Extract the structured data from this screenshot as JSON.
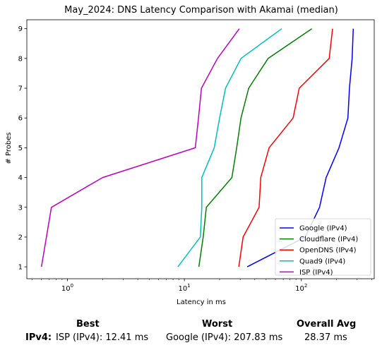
{
  "chart_data": {
    "type": "line",
    "title": "May_2024: DNS Latency Comparison with Akamai (median)",
    "xlabel": "Latency in ms",
    "ylabel": "# Probes",
    "xscale": "log",
    "xlim": [
      0.45,
      420
    ],
    "ylim": [
      0.6,
      9.3
    ],
    "xticks": [
      {
        "value": 1,
        "base": "10",
        "exp": "0"
      },
      {
        "value": 10,
        "base": "10",
        "exp": "1"
      },
      {
        "value": 100,
        "base": "10",
        "exp": "2"
      }
    ],
    "yticks": [
      1,
      2,
      3,
      4,
      5,
      6,
      7,
      8,
      9
    ],
    "legend_position": "lower-right",
    "series": [
      {
        "name": "Google (IPv4)",
        "color": "#0000ff",
        "points": [
          [
            34.5,
            1
          ],
          [
            108,
            2
          ],
          [
            143,
            3
          ],
          [
            163,
            4
          ],
          [
            210,
            5
          ],
          [
            250,
            6
          ],
          [
            258,
            7
          ],
          [
            272,
            8
          ],
          [
            278,
            9
          ]
        ]
      },
      {
        "name": "Cloudflare (IPv4)",
        "color": "#008000",
        "points": [
          [
            13.3,
            1
          ],
          [
            14.5,
            2
          ],
          [
            15.4,
            3
          ],
          [
            25.5,
            4
          ],
          [
            28.0,
            5
          ],
          [
            30.5,
            6
          ],
          [
            35.5,
            7
          ],
          [
            52.0,
            8
          ],
          [
            123,
            9
          ]
        ]
      },
      {
        "name": "OpenDNS (IPv4)",
        "color": "#ff0000",
        "points": [
          [
            29.2,
            1
          ],
          [
            31.8,
            2
          ],
          [
            43.5,
            3
          ],
          [
            45.0,
            4
          ],
          [
            53.0,
            5
          ],
          [
            85.0,
            6
          ],
          [
            96.0,
            7
          ],
          [
            173,
            8
          ],
          [
            185,
            9
          ]
        ]
      },
      {
        "name": "Quad9 (IPv4)",
        "color": "#00bfbf",
        "points": [
          [
            8.8,
            1
          ],
          [
            13.7,
            2
          ],
          [
            14.1,
            3
          ],
          [
            14.1,
            4
          ],
          [
            18.0,
            5
          ],
          [
            20.0,
            6
          ],
          [
            22.5,
            7
          ],
          [
            30.5,
            8
          ],
          [
            68.0,
            9
          ]
        ]
      },
      {
        "name": "ISP (IPv4)",
        "color": "#bf00bf",
        "points": [
          [
            0.6,
            1
          ],
          [
            0.73,
            3
          ],
          [
            2.0,
            4
          ],
          [
            12.4,
            5
          ],
          [
            13.2,
            6
          ],
          [
            14.0,
            7
          ],
          [
            19.2,
            8
          ],
          [
            29.5,
            9
          ]
        ]
      }
    ]
  },
  "summary": {
    "headers": {
      "best": "Best",
      "worst": "Worst",
      "avg": "Overall Avg"
    },
    "row_label": "IPv4",
    "best": "ISP (IPv4): 12.41 ms",
    "worst": "Google (IPv4): 207.83 ms",
    "avg": "28.37 ms"
  }
}
